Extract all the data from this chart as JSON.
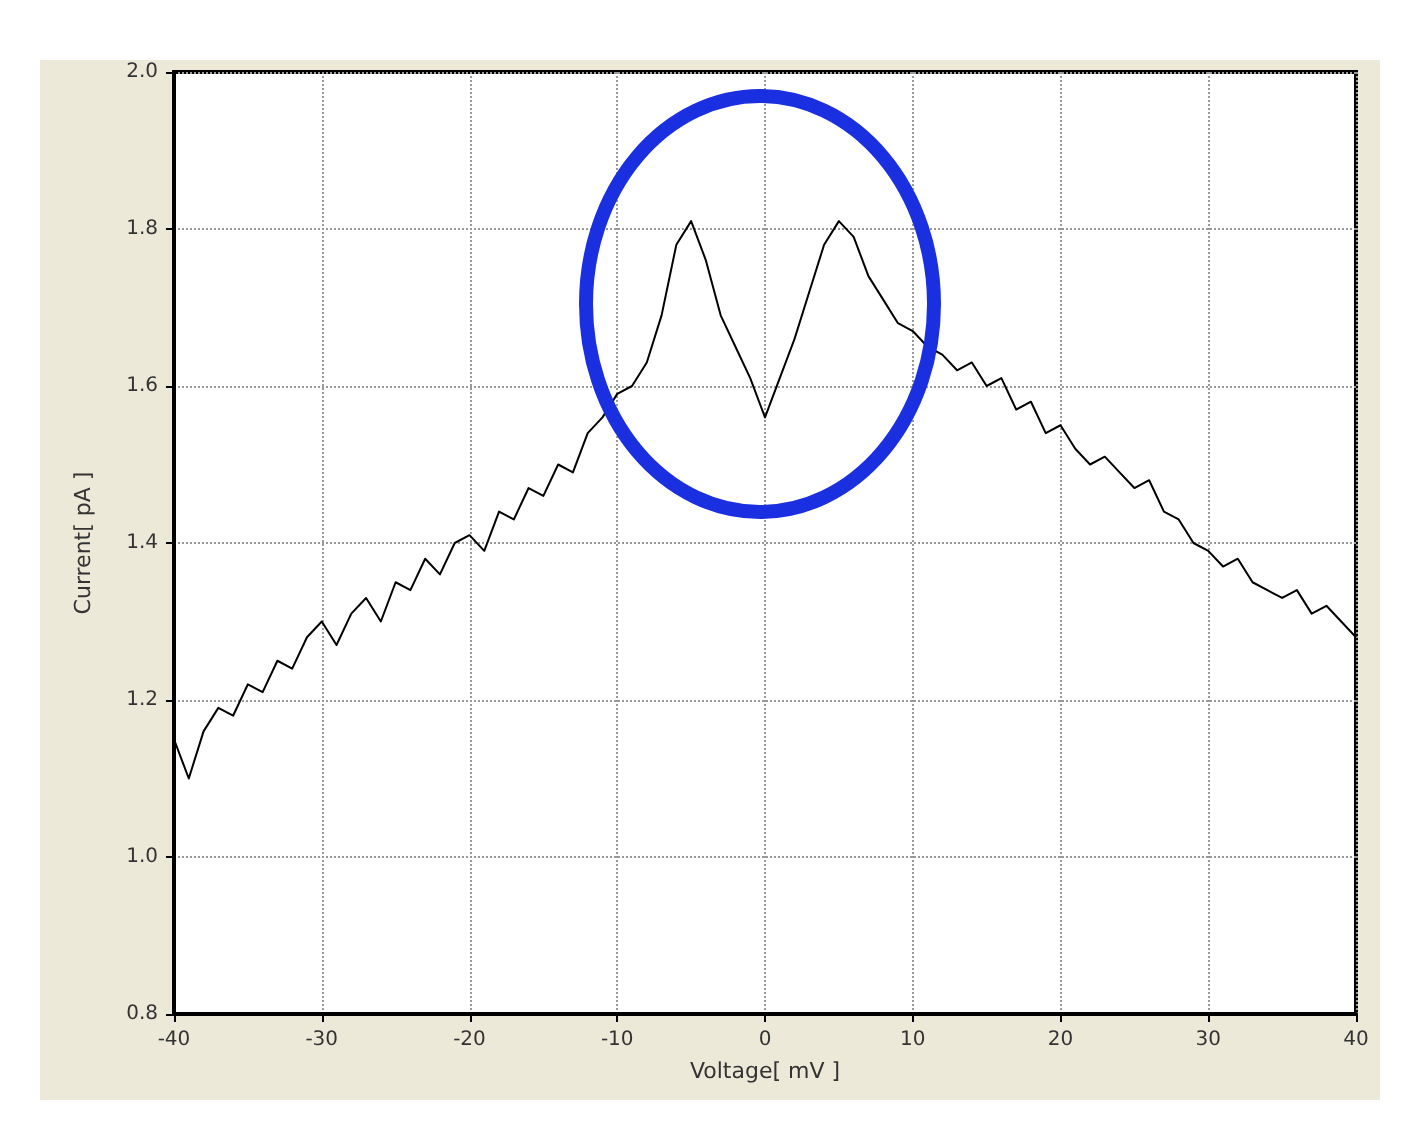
{
  "chart_data": {
    "type": "line",
    "xlabel": "Voltage[ mV ]",
    "ylabel": "Current[ pA ]",
    "x": [
      -40,
      -39,
      -38,
      -37,
      -36,
      -35,
      -34,
      -33,
      -32,
      -31,
      -30,
      -29,
      -28,
      -27,
      -26,
      -25,
      -24,
      -23,
      -22,
      -21,
      -20,
      -19,
      -18,
      -17,
      -16,
      -15,
      -14,
      -13,
      -12,
      -11,
      -10,
      -9,
      -8,
      -7,
      -6,
      -5,
      -4,
      -3,
      -2,
      -1,
      0,
      1,
      2,
      3,
      4,
      5,
      6,
      7,
      8,
      9,
      10,
      11,
      12,
      13,
      14,
      15,
      16,
      17,
      18,
      19,
      20,
      21,
      22,
      23,
      24,
      25,
      26,
      27,
      28,
      29,
      30,
      31,
      32,
      33,
      34,
      35,
      36,
      37,
      38,
      39,
      40
    ],
    "series": [
      {
        "color": "#000000",
        "values": [
          1.15,
          1.1,
          1.16,
          1.19,
          1.18,
          1.22,
          1.21,
          1.25,
          1.24,
          1.28,
          1.3,
          1.27,
          1.31,
          1.33,
          1.3,
          1.35,
          1.34,
          1.38,
          1.36,
          1.4,
          1.41,
          1.39,
          1.44,
          1.43,
          1.47,
          1.46,
          1.5,
          1.49,
          1.54,
          1.56,
          1.59,
          1.6,
          1.63,
          1.69,
          1.78,
          1.81,
          1.76,
          1.69,
          1.65,
          1.61,
          1.56,
          1.61,
          1.66,
          1.72,
          1.78,
          1.81,
          1.79,
          1.74,
          1.71,
          1.68,
          1.67,
          1.65,
          1.64,
          1.62,
          1.63,
          1.6,
          1.61,
          1.57,
          1.58,
          1.54,
          1.55,
          1.52,
          1.5,
          1.51,
          1.49,
          1.47,
          1.48,
          1.44,
          1.43,
          1.4,
          1.39,
          1.37,
          1.38,
          1.35,
          1.34,
          1.33,
          1.34,
          1.31,
          1.32,
          1.3,
          1.28
        ]
      }
    ],
    "xlim": [
      -40,
      40
    ],
    "xticks": [
      -40,
      -30,
      -20,
      -10,
      0,
      10,
      20,
      30,
      40
    ],
    "ylim": [
      0.8,
      2.0
    ],
    "yticks": [
      0.8,
      {
        "value": 1.0,
        "label": "1.0"
      },
      1.2,
      1.4,
      1.6,
      1.8,
      {
        "value": 2.0,
        "label": "2.0"
      }
    ],
    "grid": true,
    "marker": "none",
    "line_style": "solid"
  }
}
